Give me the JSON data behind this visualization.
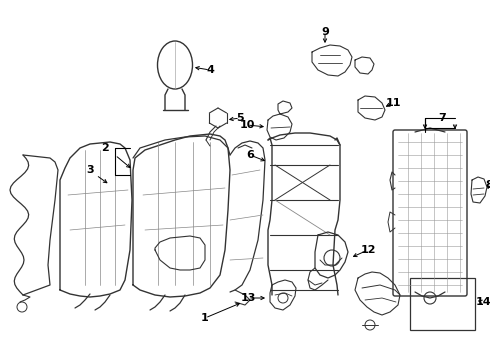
{
  "background_color": "#ffffff",
  "line_color": "#333333",
  "text_color": "#000000",
  "figsize": [
    4.9,
    3.6
  ],
  "dpi": 100,
  "xlim": [
    0,
    490
  ],
  "ylim": [
    0,
    360
  ]
}
